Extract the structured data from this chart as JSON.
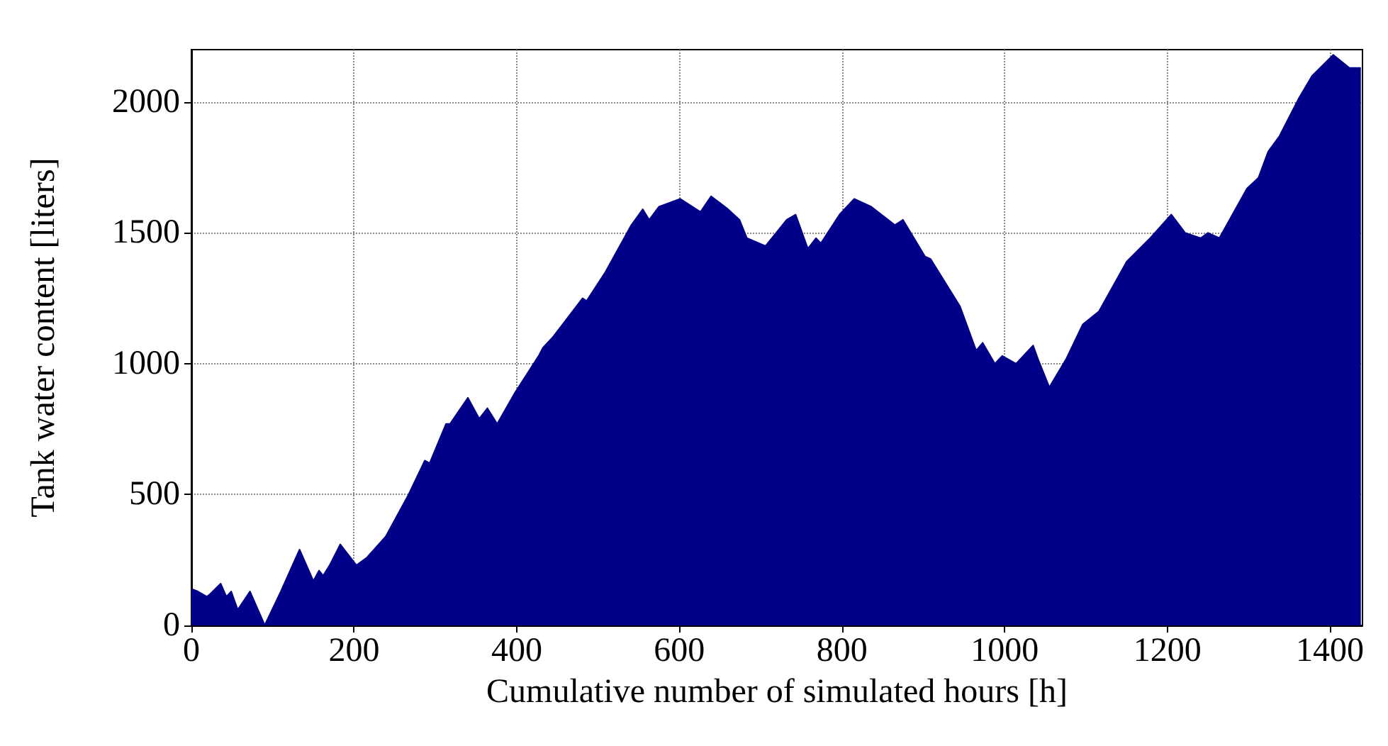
{
  "chart_data": {
    "type": "area",
    "xlabel": "Cumulative number of simulated hours [h]",
    "ylabel": "Tank water content [liters]",
    "color": "#000088",
    "x": [
      0,
      8,
      19,
      23,
      36,
      43,
      49,
      57,
      72,
      89,
      90,
      110,
      133,
      150,
      157,
      162,
      170,
      183,
      203,
      216,
      239,
      267,
      287,
      293,
      313,
      318,
      340,
      354,
      364,
      376,
      398,
      427,
      432,
      444,
      481,
      486,
      509,
      541,
      555,
      563,
      575,
      601,
      626,
      639,
      660,
      674,
      683,
      706,
      732,
      743,
      758,
      768,
      774,
      797,
      815,
      836,
      865,
      875,
      902,
      909,
      945,
      965,
      973,
      988,
      997,
      1014,
      1035,
      1042,
      1055,
      1076,
      1096,
      1116,
      1150,
      1179,
      1205,
      1222,
      1241,
      1250,
      1264,
      1298,
      1312,
      1324,
      1338,
      1361,
      1378,
      1404,
      1424,
      1438
    ],
    "values": [
      140,
      130,
      110,
      120,
      160,
      110,
      130,
      60,
      130,
      10,
      0,
      130,
      290,
      170,
      210,
      190,
      230,
      310,
      230,
      260,
      340,
      500,
      630,
      620,
      770,
      770,
      870,
      790,
      830,
      770,
      890,
      1030,
      1060,
      1100,
      1250,
      1240,
      1350,
      1530,
      1590,
      1550,
      1600,
      1630,
      1580,
      1640,
      1590,
      1550,
      1480,
      1450,
      1550,
      1570,
      1440,
      1480,
      1460,
      1570,
      1630,
      1600,
      1530,
      1550,
      1410,
      1400,
      1220,
      1050,
      1080,
      1000,
      1030,
      1000,
      1070,
      1010,
      910,
      1020,
      1150,
      1200,
      1390,
      1480,
      1570,
      1500,
      1480,
      1500,
      1480,
      1670,
      1710,
      1810,
      1870,
      2010,
      2100,
      2180,
      2130,
      2130
    ],
    "xlim": [
      0,
      1440
    ],
    "ylim": [
      0,
      2200
    ],
    "xticks": [
      0,
      200,
      400,
      600,
      800,
      1000,
      1200,
      1400
    ],
    "yticks": [
      0,
      500,
      1000,
      1500,
      2000
    ],
    "grid": true
  }
}
